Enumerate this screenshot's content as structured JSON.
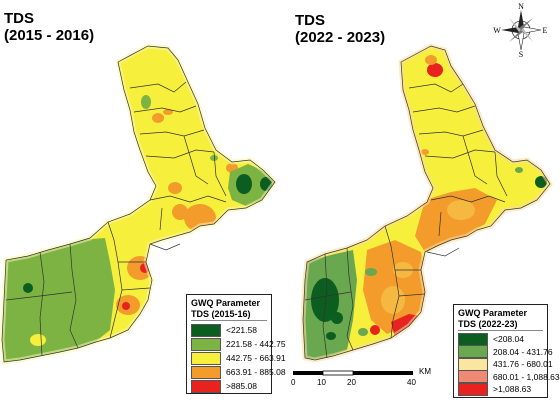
{
  "left_map": {
    "title_line1": "TDS",
    "title_line2": "(2015 - 2016)",
    "legend": {
      "title": "GWQ Parameter",
      "subtitle": "TDS (2015-16)",
      "classes": [
        {
          "label": "<221.58",
          "color": "#0b5e1f"
        },
        {
          "label": "221.58 - 442.75",
          "color": "#7cb342"
        },
        {
          "label": "442.75 - 663.91",
          "color": "#f6ef3c"
        },
        {
          "label": "663.91 - 885.08",
          "color": "#f39c2c"
        },
        {
          "label": ">885.08",
          "color": "#e8231f"
        }
      ]
    }
  },
  "right_map": {
    "title_line1": "TDS",
    "title_line2": "(2022 - 2023)",
    "legend": {
      "title": "GWQ Parameter",
      "subtitle": "TDS (2022-23)",
      "classes": [
        {
          "label": "<208.04",
          "color": "#0b5e1f"
        },
        {
          "label": "208.04 - 431.76",
          "color": "#6aa84f"
        },
        {
          "label": "431.76 - 680.01",
          "color": "#fbe6a0"
        },
        {
          "label": "680.01 - 1,088.63",
          "color": "#f08a74"
        },
        {
          "label": ">1,088.63",
          "color": "#e8231f"
        }
      ]
    }
  },
  "compass": {
    "n": "N",
    "s": "S",
    "e": "E",
    "w": "W"
  },
  "scale_bar": {
    "ticks": [
      "0",
      "10",
      "20",
      "40"
    ],
    "unit": "KM"
  }
}
